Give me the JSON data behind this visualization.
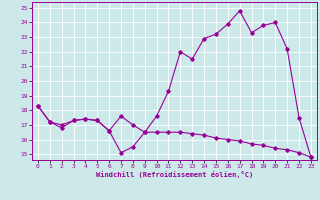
{
  "xlabel": "Windchill (Refroidissement éolien,°C)",
  "bg_color": "#cce8e8",
  "line_color": "#990099",
  "xlim": [
    -0.5,
    23.5
  ],
  "ylim": [
    14.6,
    25.4
  ],
  "yticks": [
    15,
    16,
    17,
    18,
    19,
    20,
    21,
    22,
    23,
    24,
    25
  ],
  "xticks": [
    0,
    1,
    2,
    3,
    4,
    5,
    6,
    7,
    8,
    9,
    10,
    11,
    12,
    13,
    14,
    15,
    16,
    17,
    18,
    19,
    20,
    21,
    22,
    23
  ],
  "line1_x": [
    0,
    1,
    2,
    3,
    4,
    5,
    6,
    7,
    8,
    9,
    10,
    11,
    12,
    13,
    14,
    15,
    16,
    17,
    18,
    19,
    20,
    21,
    22,
    23
  ],
  "line1_y": [
    18.3,
    17.2,
    16.8,
    17.3,
    17.4,
    17.3,
    16.6,
    15.1,
    15.5,
    16.5,
    17.6,
    19.3,
    22.0,
    21.5,
    22.9,
    23.2,
    23.9,
    24.8,
    23.3,
    23.8,
    24.0,
    22.2,
    17.5,
    14.8
  ],
  "line2_x": [
    0,
    1,
    2,
    3,
    4,
    5,
    6,
    7,
    8,
    9,
    10,
    11,
    12,
    13,
    14,
    15,
    16,
    17,
    18,
    19,
    20,
    21,
    22,
    23
  ],
  "line2_y": [
    18.3,
    17.2,
    17.0,
    17.3,
    17.4,
    17.3,
    16.6,
    17.6,
    17.0,
    16.5,
    16.5,
    16.5,
    16.5,
    16.4,
    16.3,
    16.1,
    16.0,
    15.9,
    15.7,
    15.6,
    15.4,
    15.3,
    15.1,
    14.8
  ]
}
